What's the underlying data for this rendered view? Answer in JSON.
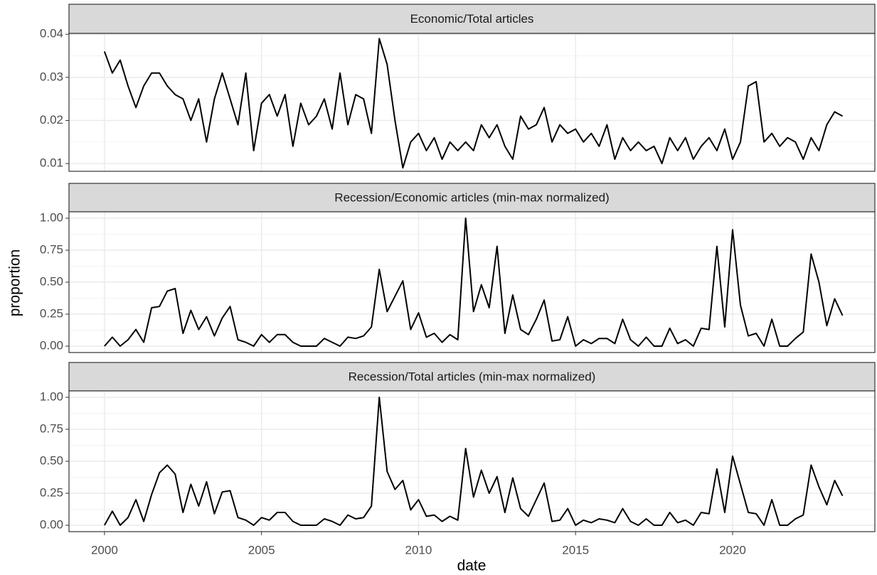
{
  "x_label": "date",
  "y_label": "proportion",
  "chart_data": [
    {
      "type": "line",
      "title": "Economic/Total articles",
      "color": "#000000",
      "grid": true,
      "x": [
        2000,
        2000.25,
        2000.5,
        2000.75,
        2001,
        2001.25,
        2001.5,
        2001.75,
        2002,
        2002.25,
        2002.5,
        2002.75,
        2003,
        2003.25,
        2003.5,
        2003.75,
        2004,
        2004.25,
        2004.5,
        2004.75,
        2005,
        2005.25,
        2005.5,
        2005.75,
        2006,
        2006.25,
        2006.5,
        2006.75,
        2007,
        2007.25,
        2007.5,
        2007.75,
        2008,
        2008.25,
        2008.5,
        2008.75,
        2009,
        2009.25,
        2009.5,
        2009.75,
        2010,
        2010.25,
        2010.5,
        2010.75,
        2011,
        2011.25,
        2011.5,
        2011.75,
        2012,
        2012.25,
        2012.5,
        2012.75,
        2013,
        2013.25,
        2013.5,
        2013.75,
        2014,
        2014.25,
        2014.5,
        2014.75,
        2015,
        2015.25,
        2015.5,
        2015.75,
        2016,
        2016.25,
        2016.5,
        2016.75,
        2017,
        2017.25,
        2017.5,
        2017.75,
        2018,
        2018.25,
        2018.5,
        2018.75,
        2019,
        2019.25,
        2019.5,
        2019.75,
        2020,
        2020.25,
        2020.5,
        2020.75,
        2021,
        2021.25,
        2021.5,
        2021.75,
        2022,
        2022.25,
        2022.5,
        2022.75,
        2023,
        2023.25,
        2023.5
      ],
      "values": [
        0.036,
        0.031,
        0.034,
        0.028,
        0.023,
        0.028,
        0.031,
        0.031,
        0.028,
        0.026,
        0.025,
        0.02,
        0.025,
        0.015,
        0.025,
        0.031,
        0.025,
        0.019,
        0.031,
        0.013,
        0.024,
        0.026,
        0.021,
        0.026,
        0.014,
        0.024,
        0.019,
        0.021,
        0.025,
        0.018,
        0.031,
        0.019,
        0.026,
        0.025,
        0.017,
        0.039,
        0.033,
        0.02,
        0.009,
        0.015,
        0.017,
        0.013,
        0.016,
        0.011,
        0.015,
        0.013,
        0.015,
        0.013,
        0.019,
        0.016,
        0.019,
        0.014,
        0.011,
        0.021,
        0.018,
        0.019,
        0.023,
        0.015,
        0.019,
        0.017,
        0.018,
        0.015,
        0.017,
        0.014,
        0.019,
        0.011,
        0.016,
        0.013,
        0.015,
        0.013,
        0.014,
        0.01,
        0.016,
        0.013,
        0.016,
        0.011,
        0.014,
        0.016,
        0.013,
        0.018,
        0.011,
        0.015,
        0.028,
        0.029,
        0.015,
        0.017,
        0.014,
        0.016,
        0.015,
        0.011,
        0.016,
        0.013,
        0.019,
        0.022,
        0.021
      ],
      "xlim": [
        1998.87,
        2024.53
      ],
      "xticks": [
        2000,
        2005,
        2010,
        2015,
        2020
      ],
      "ylim": [
        0.0082,
        0.0402
      ],
      "yticks": [
        0.01,
        0.02,
        0.03,
        0.04
      ]
    },
    {
      "type": "line",
      "title": "Recession/Economic articles (min-max normalized)",
      "color": "#000000",
      "grid": true,
      "x": [
        2000,
        2000.25,
        2000.5,
        2000.75,
        2001,
        2001.25,
        2001.5,
        2001.75,
        2002,
        2002.25,
        2002.5,
        2002.75,
        2003,
        2003.25,
        2003.5,
        2003.75,
        2004,
        2004.25,
        2004.5,
        2004.75,
        2005,
        2005.25,
        2005.5,
        2005.75,
        2006,
        2006.25,
        2006.5,
        2006.75,
        2007,
        2007.25,
        2007.5,
        2007.75,
        2008,
        2008.25,
        2008.5,
        2008.75,
        2009,
        2009.25,
        2009.5,
        2009.75,
        2010,
        2010.25,
        2010.5,
        2010.75,
        2011,
        2011.25,
        2011.5,
        2011.75,
        2012,
        2012.25,
        2012.5,
        2012.75,
        2013,
        2013.25,
        2013.5,
        2013.75,
        2014,
        2014.25,
        2014.5,
        2014.75,
        2015,
        2015.25,
        2015.5,
        2015.75,
        2016,
        2016.25,
        2016.5,
        2016.75,
        2017,
        2017.25,
        2017.5,
        2017.75,
        2018,
        2018.25,
        2018.5,
        2018.75,
        2019,
        2019.25,
        2019.5,
        2019.75,
        2020,
        2020.25,
        2020.5,
        2020.75,
        2021,
        2021.25,
        2021.5,
        2021.75,
        2022,
        2022.25,
        2022.5,
        2022.75,
        2023,
        2023.25,
        2023.5
      ],
      "values": [
        0,
        0.07,
        0,
        0.05,
        0.13,
        0.03,
        0.3,
        0.31,
        0.43,
        0.45,
        0.1,
        0.28,
        0.13,
        0.23,
        0.08,
        0.22,
        0.31,
        0.05,
        0.03,
        0,
        0.09,
        0.03,
        0.09,
        0.09,
        0.03,
        0,
        0,
        0,
        0.06,
        0.03,
        0,
        0.07,
        0.06,
        0.08,
        0.15,
        0.6,
        0.27,
        0.39,
        0.51,
        0.13,
        0.26,
        0.07,
        0.1,
        0.03,
        0.09,
        0.05,
        1.0,
        0.27,
        0.48,
        0.3,
        0.78,
        0.1,
        0.4,
        0.13,
        0.09,
        0.21,
        0.36,
        0.04,
        0.05,
        0.23,
        0,
        0.05,
        0.02,
        0.06,
        0.06,
        0.02,
        0.21,
        0.05,
        0,
        0.07,
        0,
        0,
        0.14,
        0.02,
        0.05,
        0,
        0.14,
        0.13,
        0.78,
        0.15,
        0.91,
        0.32,
        0.08,
        0.1,
        0,
        0.21,
        0,
        0,
        0.06,
        0.11,
        0.72,
        0.5,
        0.16,
        0.37,
        0.24
      ],
      "xlim": [
        1998.87,
        2024.53
      ],
      "xticks": [
        2000,
        2005,
        2010,
        2015,
        2020
      ],
      "ylim": [
        -0.05,
        1.05
      ],
      "yticks": [
        {
          "value": 0,
          "label": "0.00"
        },
        {
          "value": 0.25,
          "label": "0.25"
        },
        {
          "value": 0.5,
          "label": "0.50"
        },
        {
          "value": 0.75,
          "label": "0.75"
        },
        {
          "value": 1,
          "label": "1.00"
        }
      ]
    },
    {
      "type": "line",
      "title": "Recession/Total articles (min-max normalized)",
      "color": "#000000",
      "grid": true,
      "x": [
        2000,
        2000.25,
        2000.5,
        2000.75,
        2001,
        2001.25,
        2001.5,
        2001.75,
        2002,
        2002.25,
        2002.5,
        2002.75,
        2003,
        2003.25,
        2003.5,
        2003.75,
        2004,
        2004.25,
        2004.5,
        2004.75,
        2005,
        2005.25,
        2005.5,
        2005.75,
        2006,
        2006.25,
        2006.5,
        2006.75,
        2007,
        2007.25,
        2007.5,
        2007.75,
        2008,
        2008.25,
        2008.5,
        2008.75,
        2009,
        2009.25,
        2009.5,
        2009.75,
        2010,
        2010.25,
        2010.5,
        2010.75,
        2011,
        2011.25,
        2011.5,
        2011.75,
        2012,
        2012.25,
        2012.5,
        2012.75,
        2013,
        2013.25,
        2013.5,
        2013.75,
        2014,
        2014.25,
        2014.5,
        2014.75,
        2015,
        2015.25,
        2015.5,
        2015.75,
        2016,
        2016.25,
        2016.5,
        2016.75,
        2017,
        2017.25,
        2017.5,
        2017.75,
        2018,
        2018.25,
        2018.5,
        2018.75,
        2019,
        2019.25,
        2019.5,
        2019.75,
        2020,
        2020.25,
        2020.5,
        2020.75,
        2021,
        2021.25,
        2021.5,
        2021.75,
        2022,
        2022.25,
        2022.5,
        2022.75,
        2023,
        2023.25,
        2023.5
      ],
      "values": [
        0,
        0.11,
        0,
        0.06,
        0.2,
        0.03,
        0.24,
        0.41,
        0.47,
        0.4,
        0.1,
        0.32,
        0.15,
        0.34,
        0.09,
        0.26,
        0.27,
        0.06,
        0.04,
        0,
        0.06,
        0.04,
        0.1,
        0.1,
        0.03,
        0,
        0,
        0,
        0.05,
        0.03,
        0,
        0.08,
        0.05,
        0.06,
        0.15,
        1.0,
        0.42,
        0.28,
        0.35,
        0.12,
        0.2,
        0.07,
        0.08,
        0.03,
        0.07,
        0.04,
        0.6,
        0.22,
        0.43,
        0.25,
        0.38,
        0.1,
        0.37,
        0.13,
        0.07,
        0.2,
        0.33,
        0.03,
        0.04,
        0.13,
        0,
        0.04,
        0.02,
        0.05,
        0.04,
        0.02,
        0.13,
        0.03,
        0,
        0.05,
        0,
        0,
        0.1,
        0.02,
        0.04,
        0,
        0.1,
        0.09,
        0.44,
        0.1,
        0.54,
        0.32,
        0.1,
        0.09,
        0,
        0.2,
        0,
        0,
        0.05,
        0.08,
        0.47,
        0.3,
        0.16,
        0.35,
        0.23
      ],
      "xlim": [
        1998.87,
        2024.53
      ],
      "xticks": [
        2000,
        2005,
        2010,
        2015,
        2020
      ],
      "ylim": [
        -0.05,
        1.05
      ],
      "yticks": [
        {
          "value": 0,
          "label": "0.00"
        },
        {
          "value": 0.25,
          "label": "0.25"
        },
        {
          "value": 0.5,
          "label": "0.50"
        },
        {
          "value": 0.75,
          "label": "0.75"
        },
        {
          "value": 1,
          "label": "1.00"
        }
      ]
    }
  ]
}
